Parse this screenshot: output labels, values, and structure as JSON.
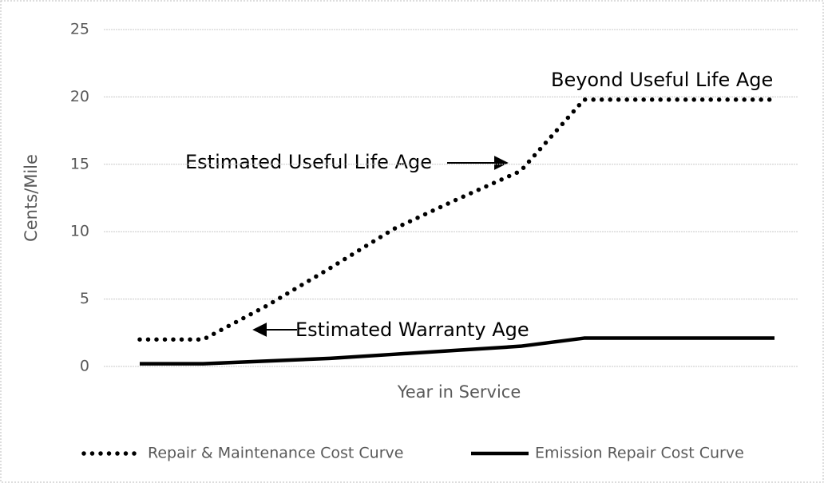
{
  "chart_data": {
    "type": "line",
    "categories": [
      null,
      null,
      null,
      null,
      null,
      null,
      null,
      null,
      null,
      null,
      null
    ],
    "series": [
      {
        "name": "Repair & Maintenance Cost Curve",
        "color": "#000000",
        "style": "dotted",
        "values": [
          2,
          2,
          4.5,
          7.3,
          10.2,
          12.4,
          14.5,
          19.8,
          19.8,
          19.8,
          19.8
        ]
      },
      {
        "name": "Emission Repair Cost Curve",
        "color": "#000000",
        "style": "solid",
        "values": [
          0.2,
          0.2,
          0.4,
          0.6,
          0.9,
          1.2,
          1.5,
          2.1,
          2.1,
          2.1,
          2.1
        ]
      }
    ],
    "xlabel": "Year in Service",
    "ylabel": "Cents/Mile",
    "ylim": [
      0,
      25
    ],
    "yticks": [
      0,
      5,
      10,
      15,
      20,
      25
    ],
    "grid": true,
    "legend": "bottom",
    "annotations": [
      {
        "text": "Beyond Useful Life Age"
      },
      {
        "text": "Estimated Useful Life Age"
      },
      {
        "text": "Estimated Warranty Age"
      }
    ]
  }
}
